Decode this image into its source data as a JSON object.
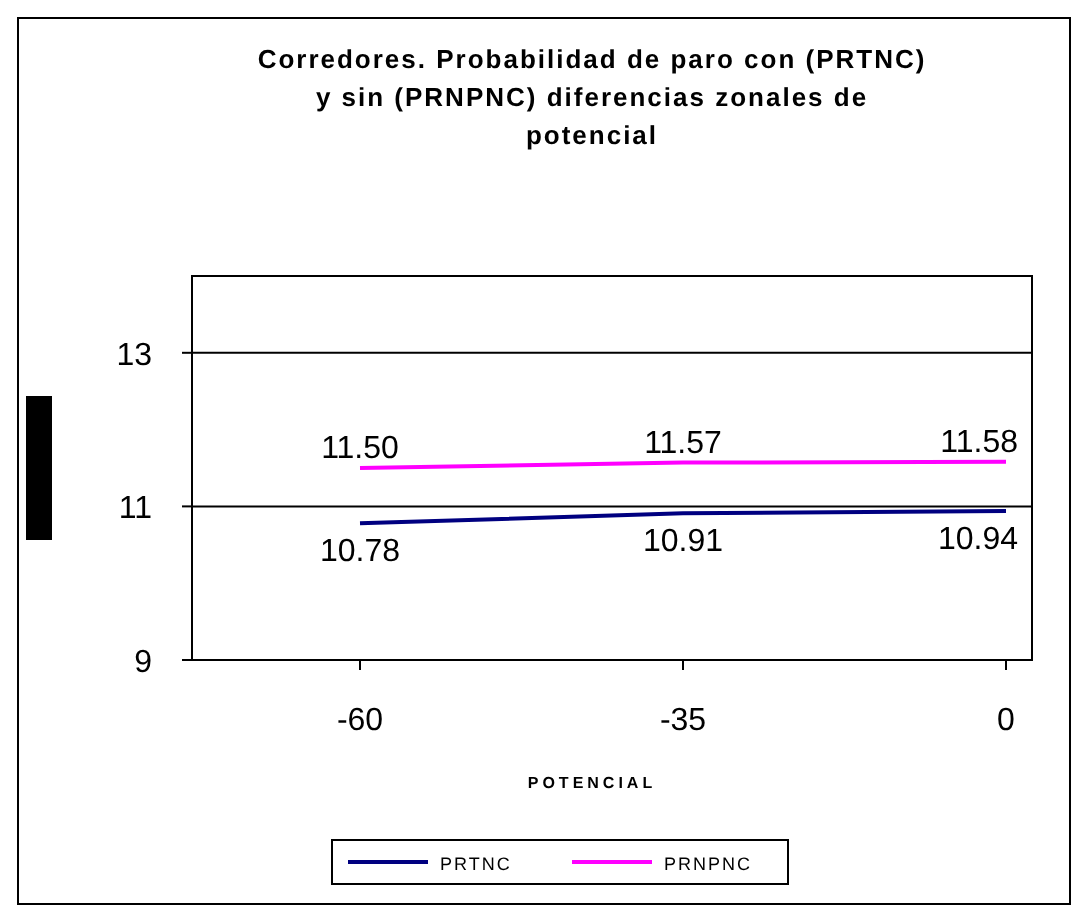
{
  "chart_data": {
    "type": "line",
    "title": "Corredores. Probabilidad de paro con (PRTNC) y sin (PRNPNC) diferencias zonales de potencial",
    "xlabel": "POTENCIAL",
    "categories": [
      "-60",
      "-35",
      "0"
    ],
    "series": [
      {
        "name": "PRTNC",
        "color": "#000080",
        "values": [
          10.78,
          10.91,
          10.94
        ]
      },
      {
        "name": "PRNPNC",
        "color": "#ff00ff",
        "values": [
          11.5,
          11.57,
          11.58
        ]
      }
    ],
    "value_labels": [
      [
        "10.78",
        "10.91",
        "10.94"
      ],
      [
        "11.50",
        "11.57",
        "11.58"
      ]
    ],
    "ylim": [
      9,
      14
    ],
    "yticks": [
      9,
      11,
      13
    ],
    "grid": "y",
    "legend": "bottom",
    "marker": "none",
    "line_style": "solid"
  }
}
